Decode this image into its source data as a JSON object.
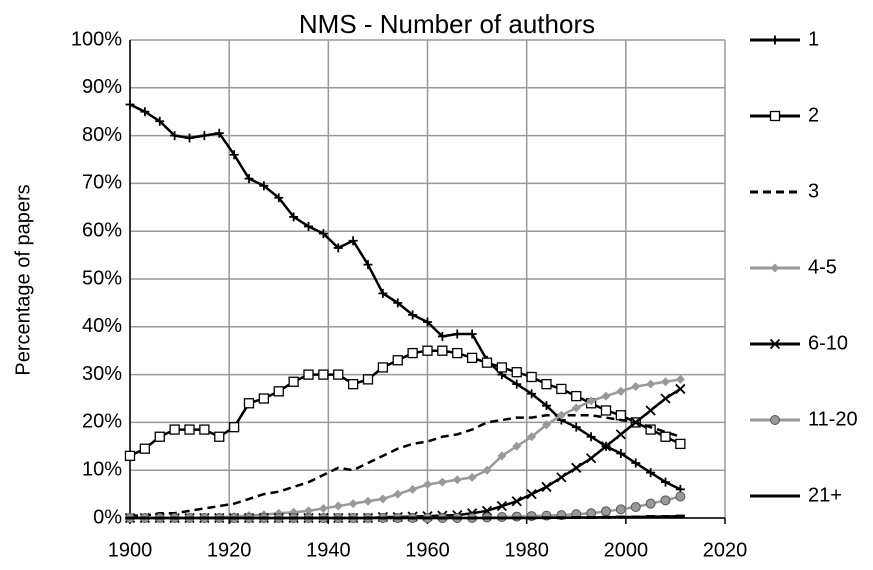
{
  "chart_data": {
    "type": "line",
    "title": "NMS - Number of authors",
    "y_label": "Percentage of papers",
    "x": [
      1900,
      1903,
      1906,
      1909,
      1912,
      1915,
      1918,
      1921,
      1924,
      1927,
      1930,
      1933,
      1936,
      1939,
      1942,
      1945,
      1948,
      1951,
      1954,
      1957,
      1960,
      1963,
      1966,
      1969,
      1972,
      1975,
      1978,
      1981,
      1984,
      1987,
      1990,
      1993,
      1996,
      1999,
      2002,
      2005,
      2008,
      2011
    ],
    "xlim": [
      1900,
      2020
    ],
    "xticks": [
      1900,
      1920,
      1940,
      1960,
      1980,
      2000,
      2020
    ],
    "ylim": [
      0,
      100
    ],
    "yticks": [
      {
        "value": 0,
        "label": "0%"
      },
      {
        "value": 10,
        "label": "10%"
      },
      {
        "value": 20,
        "label": "20%"
      },
      {
        "value": 30,
        "label": "30%"
      },
      {
        "value": 40,
        "label": "40%"
      },
      {
        "value": 50,
        "label": "50%"
      },
      {
        "value": 60,
        "label": "60%"
      },
      {
        "value": 70,
        "label": "70%"
      },
      {
        "value": 80,
        "label": "80%"
      },
      {
        "value": 90,
        "label": "90%"
      },
      {
        "value": 100,
        "label": "100%"
      }
    ],
    "grid": true,
    "legend": "right",
    "series": [
      {
        "name": "1",
        "color": "#000000",
        "marker": "plus",
        "dashed": false,
        "values": [
          86.5,
          85,
          83,
          80,
          79.5,
          80,
          80.5,
          76,
          71,
          69.5,
          67,
          63,
          61,
          59.5,
          56.5,
          58,
          53,
          47,
          45,
          42.5,
          41,
          38,
          38.5,
          38.5,
          33,
          30,
          28,
          26,
          23.5,
          20.5,
          19,
          17,
          15,
          13.5,
          11.5,
          9.5,
          7.5,
          6
        ]
      },
      {
        "name": "2",
        "color": "#000000",
        "marker": "square",
        "dashed": false,
        "values": [
          13,
          14.5,
          17,
          18.5,
          18.5,
          18.5,
          17,
          19,
          24,
          25,
          26.5,
          28.5,
          30,
          30,
          30,
          28,
          29,
          31.5,
          33,
          34.5,
          35,
          35,
          34.5,
          33.5,
          32.5,
          31.5,
          30.5,
          29.5,
          28,
          27,
          25.5,
          24,
          22.5,
          21.5,
          20,
          18.5,
          17,
          15.5
        ]
      },
      {
        "name": "3",
        "color": "#000000",
        "marker": "none",
        "dashed": true,
        "values": [
          0.5,
          0.5,
          1,
          1,
          1.5,
          2,
          2.5,
          3,
          4,
          5,
          5.5,
          6.5,
          7.5,
          9,
          10.5,
          10,
          11.5,
          13,
          14.5,
          15.5,
          16,
          17,
          17.5,
          18.5,
          20,
          20.5,
          21,
          21,
          21.5,
          21.5,
          21.5,
          21.5,
          21,
          20.5,
          20,
          19,
          18,
          17
        ]
      },
      {
        "name": "4-5",
        "color": "#999999",
        "marker": "diamond",
        "dashed": false,
        "values": [
          0,
          0,
          0,
          0,
          0,
          0,
          0.2,
          0.3,
          0.5,
          0.7,
          1,
          1.2,
          1.5,
          2,
          2.5,
          3,
          3.5,
          4,
          5,
          6,
          7,
          7.5,
          8,
          8.5,
          10,
          13,
          15,
          17,
          19.5,
          21.5,
          23,
          24.5,
          25.5,
          26.5,
          27.5,
          28,
          28.5,
          29
        ]
      },
      {
        "name": "6-10",
        "color": "#000000",
        "marker": "x",
        "dashed": false,
        "values": [
          0,
          0,
          0,
          0,
          0,
          0,
          0,
          0,
          0,
          0,
          0,
          0,
          0,
          0,
          0,
          0,
          0,
          0.2,
          0.2,
          0.3,
          0.4,
          0.5,
          0.6,
          1,
          1.5,
          2.5,
          3.5,
          5,
          6.5,
          8.5,
          10.5,
          12.5,
          15,
          17.5,
          20,
          22.5,
          25,
          27
        ]
      },
      {
        "name": "11-20",
        "color": "#999999",
        "marker": "circle",
        "dashed": false,
        "values": [
          0,
          0,
          0,
          0,
          0,
          0,
          0,
          0,
          0,
          0,
          0,
          0,
          0,
          0,
          0,
          0,
          0,
          0,
          0,
          0,
          0,
          0,
          0,
          0,
          0.1,
          0.2,
          0.3,
          0.4,
          0.5,
          0.6,
          0.8,
          1,
          1.4,
          1.8,
          2.3,
          3,
          3.7,
          4.5
        ]
      },
      {
        "name": "21+",
        "color": "#000000",
        "marker": "dash",
        "dashed": false,
        "values": [
          0,
          0,
          0,
          0,
          0,
          0,
          0,
          0,
          0,
          0,
          0,
          0,
          0,
          0,
          0,
          0,
          0,
          0,
          0,
          0,
          0,
          0,
          0,
          0,
          0,
          0,
          0,
          0,
          0.05,
          0.05,
          0.1,
          0.1,
          0.15,
          0.2,
          0.2,
          0.3,
          0.3,
          0.4
        ]
      }
    ]
  }
}
